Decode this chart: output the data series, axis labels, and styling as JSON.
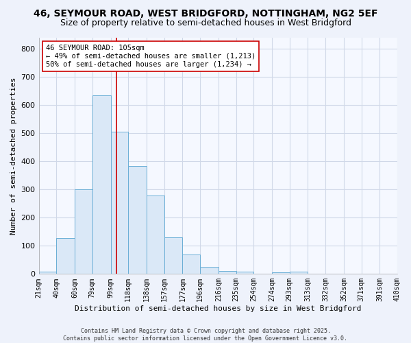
{
  "title1": "46, SEYMOUR ROAD, WEST BRIDGFORD, NOTTINGHAM, NG2 5EF",
  "title2": "Size of property relative to semi-detached houses in West Bridgford",
  "xlabel": "Distribution of semi-detached houses by size in West Bridgford",
  "ylabel": "Number of semi-detached properties",
  "bins": [
    21,
    40,
    60,
    79,
    99,
    118,
    138,
    157,
    177,
    196,
    216,
    235,
    254,
    274,
    293,
    313,
    332,
    352,
    371,
    391,
    410
  ],
  "bin_labels": [
    "21sqm",
    "40sqm",
    "60sqm",
    "79sqm",
    "99sqm",
    "118sqm",
    "138sqm",
    "157sqm",
    "177sqm",
    "196sqm",
    "216sqm",
    "235sqm",
    "254sqm",
    "274sqm",
    "293sqm",
    "313sqm",
    "332sqm",
    "352sqm",
    "371sqm",
    "391sqm",
    "410sqm"
  ],
  "counts": [
    8,
    128,
    302,
    635,
    505,
    383,
    278,
    130,
    70,
    25,
    10,
    8,
    0,
    5,
    7,
    0,
    0,
    0,
    0,
    0
  ],
  "bar_color": "#dae8f7",
  "bar_edge_color": "#6aaed6",
  "vline_x": 105,
  "vline_color": "#cc0000",
  "annotation_text": "46 SEYMOUR ROAD: 105sqm\n← 49% of semi-detached houses are smaller (1,213)\n50% of semi-detached houses are larger (1,234) →",
  "annotation_box_color": "#ffffff",
  "annotation_border_color": "#cc0000",
  "footer_text": "Contains HM Land Registry data © Crown copyright and database right 2025.\nContains public sector information licensed under the Open Government Licence v3.0.",
  "ylim": [
    0,
    840
  ],
  "yticks": [
    0,
    100,
    200,
    300,
    400,
    500,
    600,
    700,
    800
  ],
  "background_color": "#eef2fb",
  "plot_bg_color": "#f5f8ff",
  "grid_color": "#d0d8e8",
  "title1_fontsize": 10,
  "title2_fontsize": 9
}
